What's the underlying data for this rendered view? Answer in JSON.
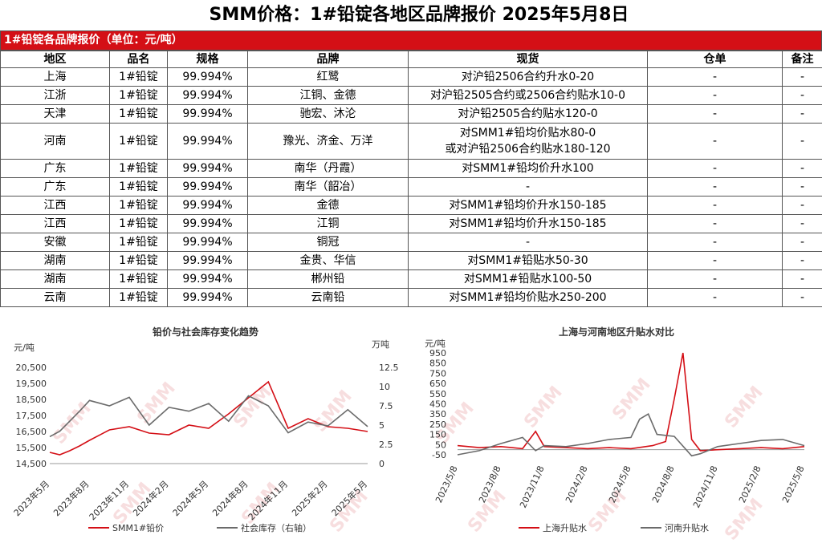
{
  "title": "SMM价格：1#铅锭各地区品牌报价 2025年5月8日",
  "table": {
    "caption": "1#铅锭各品牌报价（单位：元/吨）",
    "headers": [
      "地区",
      "品名",
      "规格",
      "品牌",
      "现货",
      "仓单",
      "备注"
    ],
    "rows": [
      [
        "上海",
        "1#铅锭",
        "99.994%",
        "红鹭",
        "对沪铅2506合约升水0-20",
        "-",
        "-"
      ],
      [
        "江浙",
        "1#铅锭",
        "99.994%",
        "江铜、金德",
        "对沪铅2505合约或2506合约贴水10-0",
        "-",
        "-"
      ],
      [
        "天津",
        "1#铅锭",
        "99.994%",
        "驰宏、沐沦",
        "对沪铅2505合约贴水120-0",
        "-",
        "-"
      ],
      [
        "河南",
        "1#铅锭",
        "99.994%",
        "豫光、济金、万洋",
        "对SMM1#铅均价贴水80-0\n或对沪铅2506合约贴水180-120",
        "-",
        "-"
      ],
      [
        "广东",
        "1#铅锭",
        "99.994%",
        "南华（丹霞）",
        "对SMM1#铅均价升水100",
        "-",
        "-"
      ],
      [
        "广东",
        "1#铅锭",
        "99.994%",
        "南华（韶冶）",
        "-",
        "-",
        "-"
      ],
      [
        "江西",
        "1#铅锭",
        "99.994%",
        "金德",
        "对SMM1#铅均价升水150-185",
        "-",
        "-"
      ],
      [
        "江西",
        "1#铅锭",
        "99.994%",
        "江铜",
        "对SMM1#铅均价升水150-185",
        "-",
        "-"
      ],
      [
        "安徽",
        "1#铅锭",
        "99.994%",
        "铜冠",
        "-",
        "-",
        "-"
      ],
      [
        "湖南",
        "1#铅锭",
        "99.994%",
        "金贵、华信",
        "对SMM1#铅贴水50-30",
        "-",
        "-"
      ],
      [
        "湖南",
        "1#铅锭",
        "99.994%",
        "郴州铅",
        "对SMM1#铅贴水100-50",
        "-",
        "-"
      ],
      [
        "云南",
        "1#铅锭",
        "99.994%",
        "云南铅",
        "对SMM1#铅均价贴水250-200",
        "-",
        "-"
      ]
    ]
  },
  "watermark": "SMM",
  "chart_data": [
    {
      "type": "line",
      "title": "铅价与社会库存变化趋势",
      "ylabel_left": "元/吨",
      "ylabel_right": "万吨",
      "left_ticks": [
        "20,500",
        "19,500",
        "18,500",
        "17,500",
        "16,500",
        "15,500",
        "14,500"
      ],
      "left_ylim": [
        14500,
        20500
      ],
      "right_ticks": [
        "12.5",
        "10",
        "7.5",
        "5",
        "2.5",
        "0"
      ],
      "right_ylim": [
        0,
        12.5
      ],
      "x_ticks": [
        "2023年5月",
        "2023年8月",
        "2023年11月",
        "2024年2月",
        "2024年5月",
        "2024年8月",
        "2024年11月",
        "2025年2月",
        "2025年5月"
      ],
      "series": [
        {
          "name": "SMM1#铅价",
          "color": "#d40f16",
          "axis": "left",
          "x": [
            0,
            0.25,
            0.5,
            0.75,
            1,
            1.5,
            2,
            2.5,
            3,
            3.5,
            4,
            4.5,
            5,
            5.5,
            6,
            6.5,
            7,
            7.5,
            8
          ],
          "values": [
            15200,
            15050,
            15300,
            15600,
            15950,
            16600,
            16800,
            16400,
            16300,
            16900,
            16700,
            17600,
            18600,
            19600,
            16700,
            17300,
            16800,
            16700,
            16500
          ]
        },
        {
          "name": "社会库存（右轴）",
          "color": "#6b6b6b",
          "axis": "right",
          "x": [
            0,
            0.25,
            0.5,
            0.75,
            1,
            1.5,
            2,
            2.5,
            3,
            3.5,
            4,
            4.5,
            5,
            5.5,
            6,
            6.5,
            7,
            7.5,
            8
          ],
          "values": [
            3.5,
            4.2,
            5.5,
            6.8,
            8.2,
            7.5,
            8.6,
            5,
            7.3,
            6.8,
            7.8,
            5.5,
            8.8,
            7.5,
            4,
            5.4,
            4.9,
            7,
            4.8
          ]
        }
      ]
    },
    {
      "type": "line",
      "title": "上海与河南地区升贴水对比",
      "ylabel": "元/吨",
      "y_ticks": [
        "950",
        "850",
        "750",
        "650",
        "550",
        "450",
        "350",
        "250",
        "150",
        "50",
        "-50"
      ],
      "ylim": [
        -50,
        950
      ],
      "x_ticks": [
        "2023/5/8",
        "2023/8/8",
        "2023/11/8",
        "2024/2/8",
        "2024/5/8",
        "2024/8/8",
        "2024/11/8",
        "2025/2/8",
        "2025/5/8"
      ],
      "series": [
        {
          "name": "上海升贴水",
          "color": "#d40f16",
          "x": [
            0,
            0.5,
            1,
            1.5,
            1.8,
            2,
            2.5,
            3,
            3.5,
            4,
            4.5,
            4.8,
            5,
            5.2,
            5.4,
            5.6,
            6,
            6.5,
            7,
            7.5,
            8
          ],
          "values": [
            40,
            20,
            30,
            10,
            180,
            30,
            20,
            10,
            20,
            10,
            40,
            80,
            500,
            950,
            100,
            -10,
            0,
            10,
            20,
            10,
            30
          ]
        },
        {
          "name": "河南升贴水",
          "color": "#6b6b6b",
          "x": [
            0,
            0.5,
            1,
            1.5,
            1.8,
            2,
            2.5,
            3,
            3.5,
            4,
            4.2,
            4.4,
            4.6,
            5,
            5.4,
            5.6,
            6,
            6.5,
            7,
            7.5,
            8
          ],
          "values": [
            -50,
            -10,
            60,
            120,
            -10,
            40,
            30,
            60,
            100,
            120,
            300,
            350,
            150,
            130,
            -60,
            -40,
            30,
            60,
            90,
            100,
            40
          ]
        }
      ]
    }
  ]
}
